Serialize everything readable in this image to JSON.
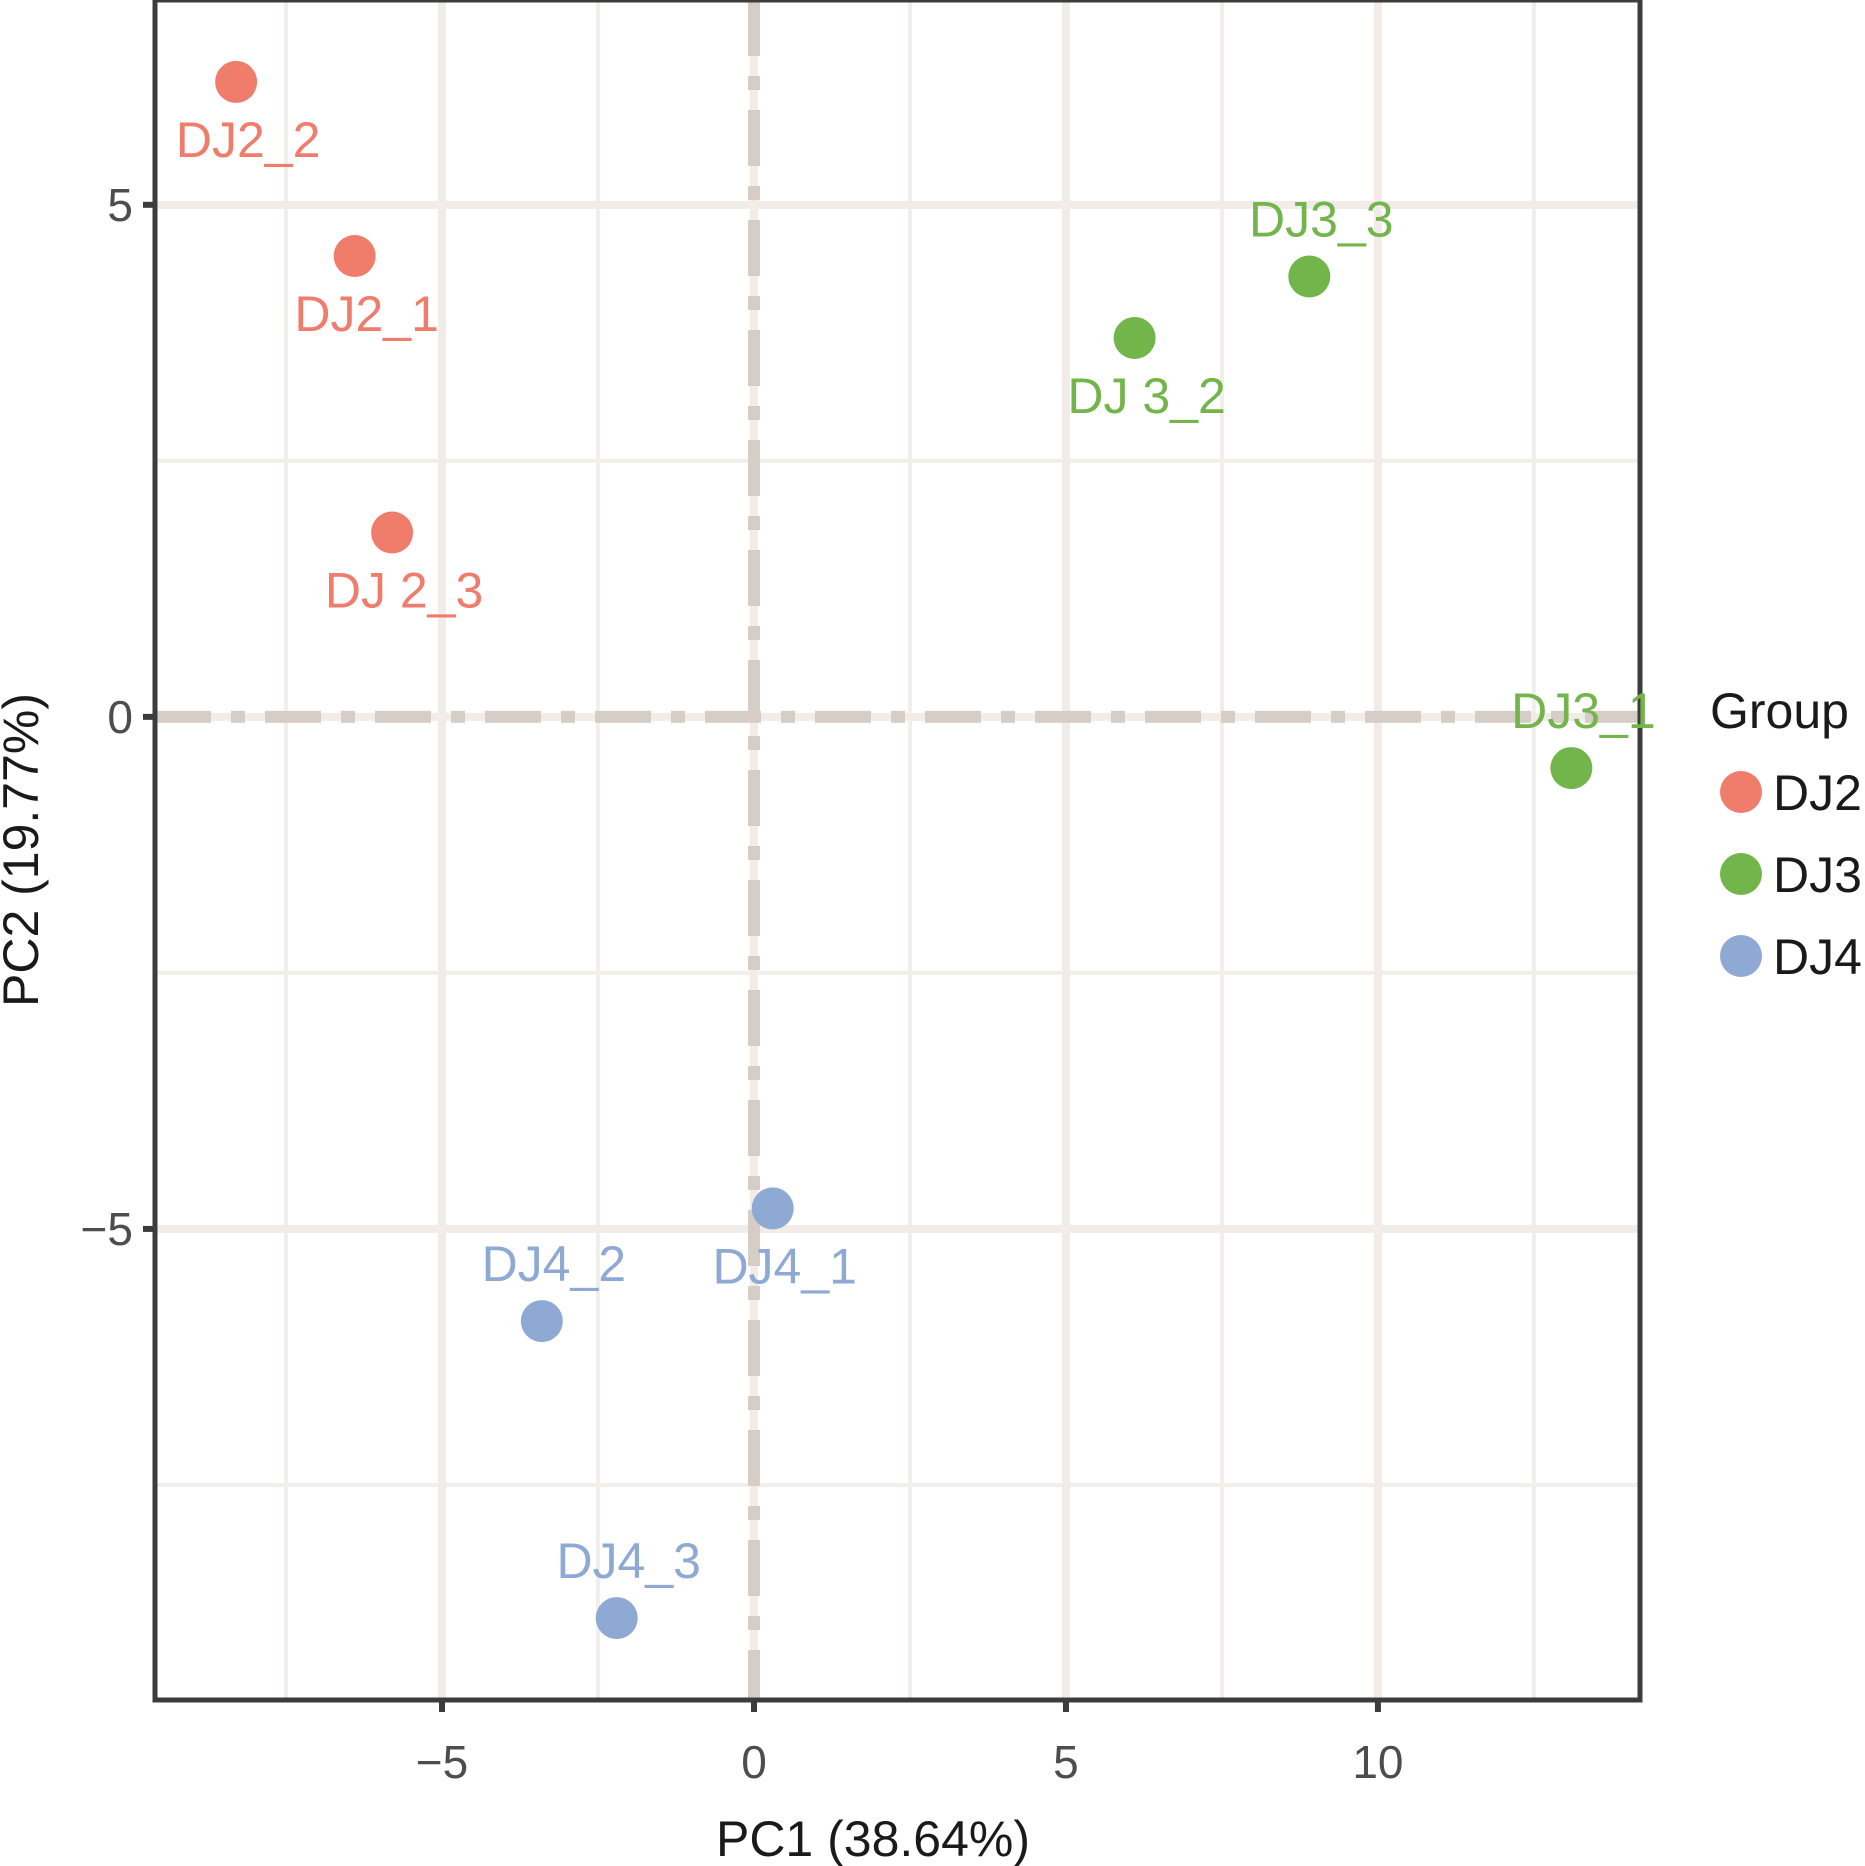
{
  "chart_data": {
    "type": "scatter",
    "title": "",
    "xlabel": "PC1 (38.64%)",
    "ylabel": "PC2 (19.77%)",
    "xlim": [
      -9.6,
      14.2
    ],
    "ylim": [
      -9.6,
      7.0
    ],
    "x_ticks": [
      -5,
      0,
      5,
      10
    ],
    "y_ticks": [
      5,
      0,
      -5
    ],
    "x_tick_labels": [
      "−5",
      "0",
      "5",
      "10"
    ],
    "y_tick_labels": [
      "5",
      "0",
      "−5"
    ],
    "x_minor_gridlines": [
      -7.5,
      -2.5,
      2.5,
      7.5,
      12.5
    ],
    "y_minor_gridlines": [
      2.5,
      -2.5,
      -7.5
    ],
    "grid": true,
    "reference_lines": {
      "x": 0,
      "y": 0,
      "style": "dashed"
    },
    "legend": {
      "title": "Group",
      "position": "right"
    },
    "groups": [
      {
        "name": "DJ2",
        "color": "#f07c6c"
      },
      {
        "name": "DJ3",
        "color": "#72b54a"
      },
      {
        "name": "DJ4",
        "color": "#8eaad4"
      }
    ],
    "points": [
      {
        "label": "DJ2_2",
        "group": "DJ2",
        "x": -8.3,
        "y": 6.2,
        "label_pos": "below"
      },
      {
        "label": "DJ2_1",
        "group": "DJ2",
        "x": -6.4,
        "y": 4.5,
        "label_pos": "below"
      },
      {
        "label": "DJ 2_3",
        "group": "DJ2",
        "x": -5.8,
        "y": 1.8,
        "label_pos": "below"
      },
      {
        "label": "DJ3_3",
        "group": "DJ3",
        "x": 8.9,
        "y": 4.3,
        "label_pos": "above"
      },
      {
        "label": "DJ 3_2",
        "group": "DJ3",
        "x": 6.1,
        "y": 3.7,
        "label_pos": "below"
      },
      {
        "label": "DJ3_1",
        "group": "DJ3",
        "x": 13.1,
        "y": -0.5,
        "label_pos": "above"
      },
      {
        "label": "DJ4_1",
        "group": "DJ4",
        "x": 0.3,
        "y": -4.8,
        "label_pos": "below"
      },
      {
        "label": "DJ4_2",
        "group": "DJ4",
        "x": -3.4,
        "y": -5.9,
        "label_pos": "above"
      },
      {
        "label": "DJ4_3",
        "group": "DJ4",
        "x": -2.2,
        "y": -8.8,
        "label_pos": "above"
      }
    ]
  }
}
